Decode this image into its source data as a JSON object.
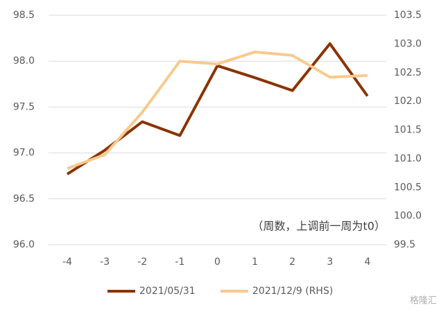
{
  "chart_data": {
    "type": "line",
    "categories": [
      "-4",
      "-3",
      "-2",
      "-1",
      "0",
      "1",
      "2",
      "3",
      "4"
    ],
    "series": [
      {
        "name": "2021/05/31",
        "color": "#8b3300",
        "values": [
          96.77,
          97.03,
          97.34,
          97.19,
          97.95,
          97.82,
          97.68,
          98.19,
          97.62
        ]
      },
      {
        "name": "2021/12/9 (RHS)",
        "color": "#f9c98e",
        "axis": "y2",
        "values": [
          100.83,
          101.07,
          101.81,
          102.7,
          102.65,
          102.86,
          102.8,
          102.42,
          102.45
        ]
      }
    ],
    "ylim": [
      96.0,
      98.5
    ],
    "yticks": [
      {
        "value": 96,
        "label": "96.0"
      },
      96.5,
      {
        "value": 97,
        "label": "97.0"
      },
      97.5,
      {
        "value": 98,
        "label": "98.0"
      },
      98.5
    ],
    "y2lim": [
      99.5,
      103.5
    ],
    "y2ticks": [
      99.5,
      {
        "value": 100,
        "label": "100.0"
      },
      100.5,
      {
        "value": 101,
        "label": "101.0"
      },
      101.5,
      {
        "value": 102,
        "label": "102.0"
      },
      102.5,
      {
        "value": 103,
        "label": "103.0"
      },
      103.5
    ],
    "grid": true,
    "legend": "bottom",
    "annotation": "（周数，上调前一周为t0）",
    "watermark": "格隆汇"
  }
}
